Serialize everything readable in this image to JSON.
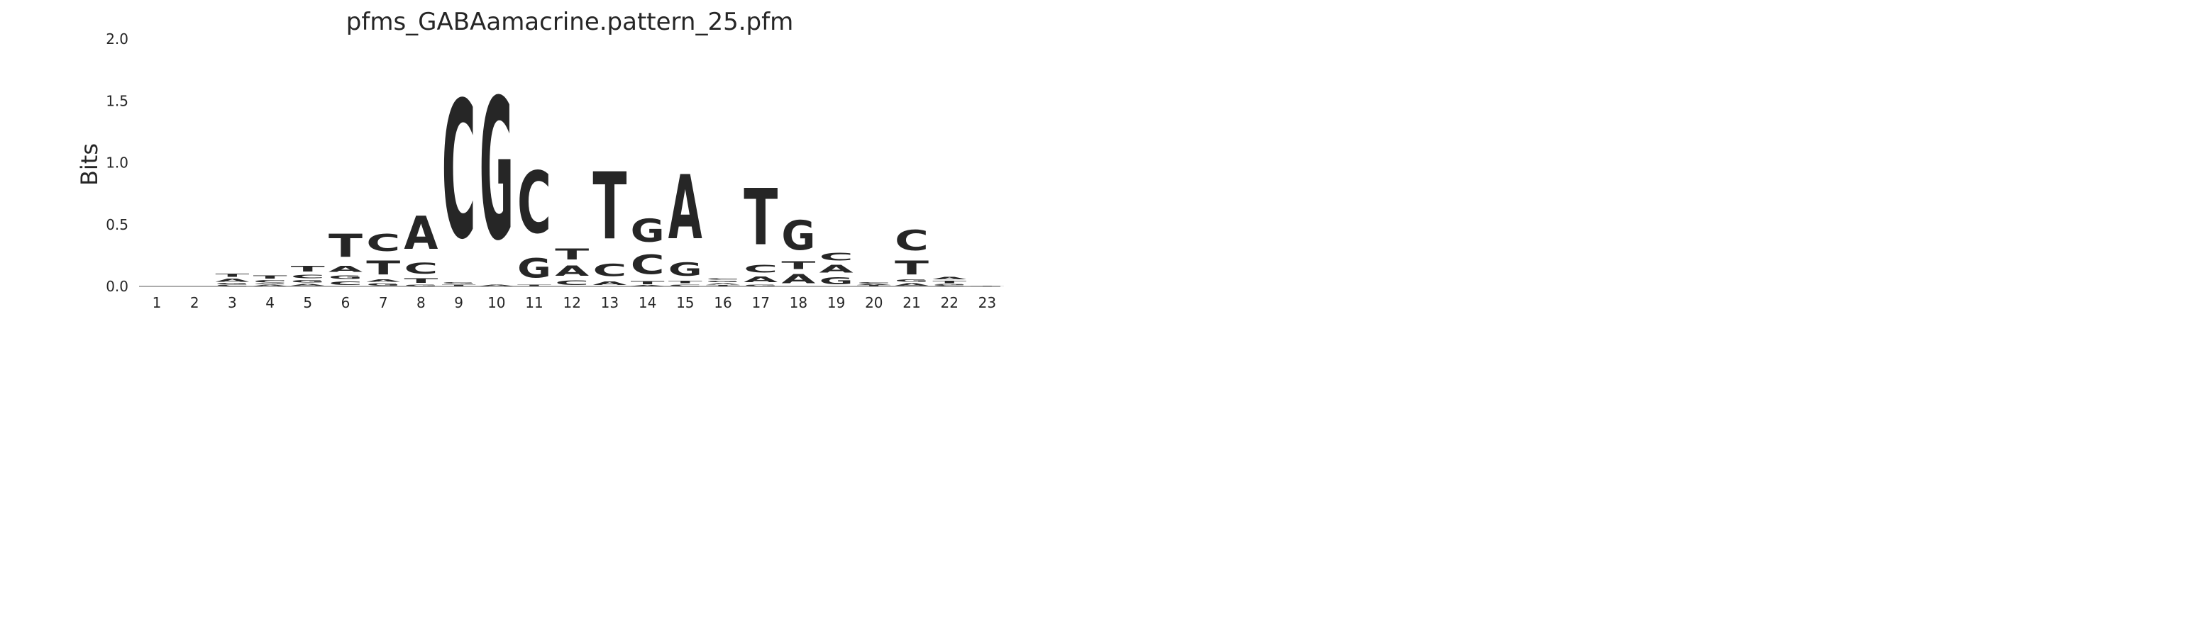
{
  "chart_data": {
    "type": "sequence-logo",
    "title": "pfms_GABAamacrine.pattern_25.pfm",
    "xlabel": "",
    "ylabel": "Bits",
    "ylim": [
      0,
      2.0
    ],
    "yticks": [
      0.0,
      0.5,
      1.0,
      1.5,
      2.0
    ],
    "ytick_labels": [
      "0.0",
      "0.5",
      "1.0",
      "1.5",
      "2.0"
    ],
    "positions": [
      "1",
      "2",
      "3",
      "4",
      "5",
      "6",
      "7",
      "8",
      "9",
      "10",
      "11",
      "12",
      "13",
      "14",
      "15",
      "16",
      "17",
      "18",
      "19",
      "20",
      "21",
      "22",
      "23"
    ],
    "colors": {
      "A": "#008000",
      "C": "#0000ff",
      "G": "#ffa500",
      "T": "#ff0000"
    },
    "columns": [
      {
        "position": "1",
        "stack": []
      },
      {
        "position": "2",
        "stack": []
      },
      {
        "position": "3",
        "stack": [
          [
            "C",
            0.015
          ],
          [
            "G",
            0.015
          ],
          [
            "A",
            0.04
          ],
          [
            "T",
            0.04
          ]
        ]
      },
      {
        "position": "4",
        "stack": [
          [
            "A",
            0.015
          ],
          [
            "G",
            0.01
          ],
          [
            "C",
            0.03
          ],
          [
            "T",
            0.04
          ]
        ]
      },
      {
        "position": "5",
        "stack": [
          [
            "A",
            0.025
          ],
          [
            "G",
            0.03
          ],
          [
            "C",
            0.05
          ],
          [
            "T",
            0.07
          ]
        ]
      },
      {
        "position": "6",
        "stack": [
          [
            "C",
            0.05
          ],
          [
            "G",
            0.05
          ],
          [
            "A",
            0.08
          ],
          [
            "T",
            0.3
          ]
        ]
      },
      {
        "position": "7",
        "stack": [
          [
            "G",
            0.03
          ],
          [
            "A",
            0.03
          ],
          [
            "T",
            0.18
          ],
          [
            "C",
            0.22
          ]
        ]
      },
      {
        "position": "8",
        "stack": [
          [
            "G",
            0.015
          ],
          [
            "T",
            0.06
          ],
          [
            "C",
            0.14
          ],
          [
            "A",
            0.43
          ]
        ]
      },
      {
        "position": "9",
        "stack": [
          [
            "T",
            0.02
          ],
          [
            "G",
            0.02
          ],
          [
            "C",
            1.78
          ]
        ]
      },
      {
        "position": "10",
        "stack": [
          [
            "A",
            0.02
          ],
          [
            "G",
            1.83
          ]
        ]
      },
      {
        "position": "11",
        "stack": [
          [
            "T",
            0.02
          ],
          [
            "G",
            0.25
          ],
          [
            "C",
            0.8
          ]
        ]
      },
      {
        "position": "12",
        "stack": [
          [
            "C",
            0.06
          ],
          [
            "A",
            0.13
          ],
          [
            "T",
            0.14
          ]
        ]
      },
      {
        "position": "13",
        "stack": [
          [
            "A",
            0.05
          ],
          [
            "C",
            0.16
          ],
          [
            "T",
            0.87
          ]
        ]
      },
      {
        "position": "14",
        "stack": [
          [
            "A",
            0.01
          ],
          [
            "T",
            0.04
          ],
          [
            "C",
            0.25
          ],
          [
            "G",
            0.3
          ]
        ]
      },
      {
        "position": "15",
        "stack": [
          [
            "C",
            0.02
          ],
          [
            "T",
            0.03
          ],
          [
            "G",
            0.17
          ],
          [
            "A",
            0.83
          ]
        ]
      },
      {
        "position": "16",
        "stack": [
          [
            "T",
            0.01
          ],
          [
            "A",
            0.02
          ],
          [
            "G",
            0.02
          ],
          [
            "C",
            0.02
          ]
        ]
      },
      {
        "position": "17",
        "stack": [
          [
            "G",
            0.02
          ],
          [
            "A",
            0.07
          ],
          [
            "C",
            0.1
          ],
          [
            "T",
            0.73
          ]
        ]
      },
      {
        "position": "18",
        "stack": [
          [
            "A",
            0.12
          ],
          [
            "T",
            0.1
          ],
          [
            "G",
            0.38
          ]
        ]
      },
      {
        "position": "19",
        "stack": [
          [
            "G",
            0.09
          ],
          [
            "A",
            0.1
          ],
          [
            "C",
            0.1
          ]
        ]
      },
      {
        "position": "20",
        "stack": [
          [
            "T",
            0.01
          ],
          [
            "A",
            0.01
          ],
          [
            "C",
            0.015
          ]
        ]
      },
      {
        "position": "21",
        "stack": [
          [
            "A",
            0.03
          ],
          [
            "G",
            0.03
          ],
          [
            "T",
            0.18
          ],
          [
            "C",
            0.26
          ]
        ]
      },
      {
        "position": "22",
        "stack": [
          [
            "C",
            0.01
          ],
          [
            "G",
            0.01
          ],
          [
            "T",
            0.03
          ],
          [
            "A",
            0.03
          ]
        ]
      },
      {
        "position": "23",
        "stack": [
          [
            "T",
            0.008
          ]
        ]
      }
    ]
  }
}
